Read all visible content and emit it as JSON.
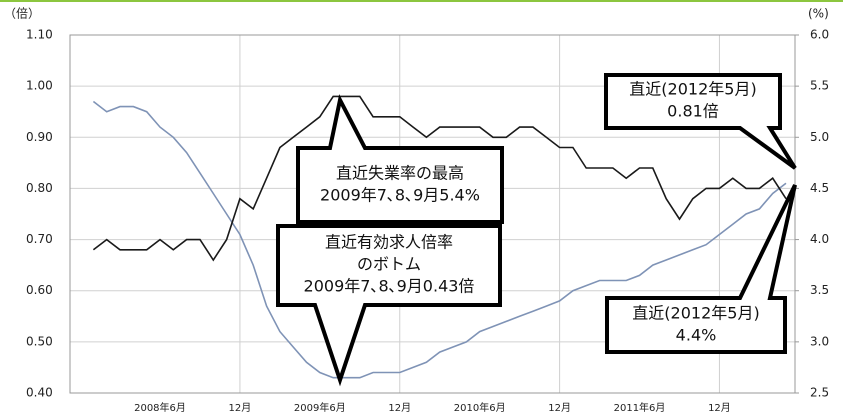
{
  "chart_data": {
    "type": "line",
    "y_label": "（倍）",
    "y2_label": "(%)",
    "categories": [
      null,
      null,
      null,
      null,
      null,
      "2008年6月",
      null,
      null,
      null,
      null,
      null,
      "12月",
      null,
      null,
      null,
      null,
      null,
      "2009年6月",
      null,
      null,
      null,
      null,
      null,
      "12月",
      null,
      null,
      null,
      null,
      null,
      "2010年6月",
      null,
      null,
      null,
      null,
      null,
      "12月",
      null,
      null,
      null,
      null,
      null,
      "2011年6月",
      null,
      null,
      null,
      null,
      null,
      "12月",
      null,
      null,
      null,
      null,
      null
    ],
    "ylim": [
      0.4,
      1.1
    ],
    "yticks": [
      {
        "value": 0.4,
        "label": "0.40"
      },
      {
        "value": 0.5,
        "label": "0.50"
      },
      {
        "value": 0.6,
        "label": "0.60"
      },
      {
        "value": 0.7,
        "label": "0.70"
      },
      {
        "value": 0.8,
        "label": "0.80"
      },
      {
        "value": 0.9,
        "label": "0.90"
      },
      {
        "value": 1.0,
        "label": "1.00"
      },
      {
        "value": 1.1,
        "label": "1.10"
      }
    ],
    "y2lim": [
      2.5,
      6.0
    ],
    "y2ticks": [
      2.5,
      {
        "value": 3,
        "label": "3.0"
      },
      3.5,
      {
        "value": 4,
        "label": "4.0"
      },
      4.5,
      {
        "value": 5,
        "label": "5.0"
      },
      5.5,
      {
        "value": 6,
        "label": "6.0"
      }
    ],
    "grid": true,
    "series": [
      {
        "color": "#7f93b6",
        "axis": "y",
        "values": [
          0.97,
          0.95,
          0.96,
          0.96,
          0.95,
          0.92,
          0.9,
          0.87,
          0.83,
          0.79,
          0.75,
          0.71,
          0.65,
          0.57,
          0.52,
          0.49,
          0.46,
          0.44,
          0.43,
          0.43,
          0.43,
          0.44,
          0.44,
          0.44,
          0.45,
          0.46,
          0.48,
          0.49,
          0.5,
          0.52,
          0.53,
          0.54,
          0.55,
          0.56,
          0.57,
          0.58,
          0.6,
          0.61,
          0.62,
          0.62,
          0.62,
          0.63,
          0.65,
          0.66,
          0.67,
          0.68,
          0.69,
          0.71,
          0.73,
          0.75,
          0.76,
          0.79,
          0.81
        ]
      },
      {
        "color": "#1a1a1a",
        "axis": "y2",
        "values": [
          3.9,
          4.0,
          3.9,
          3.9,
          3.9,
          4.0,
          3.9,
          4.0,
          4.0,
          3.8,
          4.0,
          4.4,
          4.3,
          4.6,
          4.9,
          5.0,
          5.1,
          5.2,
          5.4,
          5.4,
          5.4,
          5.2,
          5.2,
          5.2,
          5.1,
          5.0,
          5.1,
          5.1,
          5.1,
          5.1,
          5.0,
          5.0,
          5.1,
          5.1,
          5.0,
          4.9,
          4.9,
          4.7,
          4.7,
          4.7,
          4.6,
          4.7,
          4.7,
          4.4,
          4.2,
          4.4,
          4.5,
          4.5,
          4.6,
          4.5,
          4.5,
          4.6,
          4.4
        ]
      }
    ],
    "annotations": [
      {
        "lines": [
          "直近(2012年5月)",
          "0.81倍"
        ]
      },
      {
        "lines": [
          "直近失業率の最高",
          "2009年7､8､9月5.4%"
        ]
      },
      {
        "lines": [
          "直近有効求人倍率",
          "のボトム",
          "2009年7､8､9月0.43倍"
        ]
      },
      {
        "lines": [
          "直近(2012年5月)",
          "4.4%"
        ]
      }
    ]
  }
}
